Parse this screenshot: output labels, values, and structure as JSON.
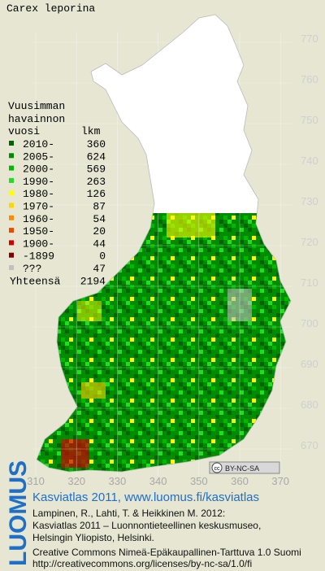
{
  "title": "Carex leporina",
  "legend": {
    "heading": [
      "Vuusimman",
      "havainnon"
    ],
    "col_headers": [
      "vuosi",
      "lkm"
    ],
    "items": [
      {
        "label": "2010-",
        "count": 360,
        "color": "#006400"
      },
      {
        "label": "2005-",
        "count": 624,
        "color": "#008c00"
      },
      {
        "label": "2000-",
        "count": 569,
        "color": "#00b800"
      },
      {
        "label": "1990-",
        "count": 263,
        "color": "#22dd22"
      },
      {
        "label": "1980-",
        "count": 126,
        "color": "#ffff00"
      },
      {
        "label": "1970-",
        "count": 87,
        "color": "#ffd700"
      },
      {
        "label": "1960-",
        "count": 54,
        "color": "#ff8c00"
      },
      {
        "label": "1950-",
        "count": 20,
        "color": "#e84a00"
      },
      {
        "label": "1900-",
        "count": 44,
        "color": "#cc0000"
      },
      {
        "label": "-1899",
        "count": 0,
        "color": "#800000"
      },
      {
        "label": "???",
        "count": 47,
        "color": "#c0c0c0"
      }
    ],
    "total_label": "Yhteensä",
    "total": 2194
  },
  "map": {
    "y_ticks": [
      770,
      760,
      750,
      740,
      730,
      720,
      710,
      700,
      690,
      680,
      670
    ],
    "x_ticks": [
      310,
      320,
      330,
      340,
      350,
      360,
      370
    ]
  },
  "badge": {
    "icon": "cc",
    "text": "BY-NC-SA"
  },
  "logo": "LUOMUS",
  "credits": {
    "link": "Kasviatlas 2011, www.luomus.fi/kasviatlas",
    "citation": [
      "Lampinen, R., Lahti, T. & Heikkinen M. 2012:",
      "Kasviatlas 2011 – Luonnontieteellinen keskusmuseo,",
      "Helsingin Yliopisto, Helsinki."
    ],
    "license": [
      "Creative Commons Nimeä-Epäkaupallinen-Tarttuva 1.0 Suomi",
      "http://creativecommons.org/licenses/by-nc-sa/1.0/fi"
    ]
  }
}
